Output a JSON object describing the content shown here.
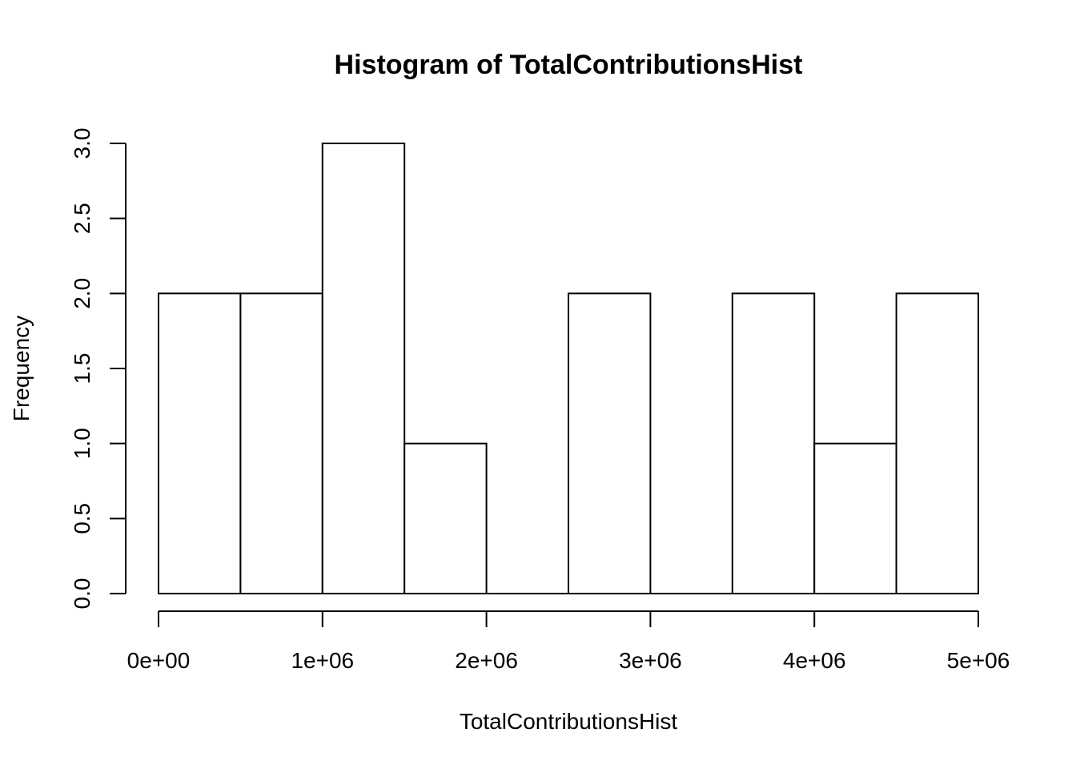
{
  "chart_data": {
    "type": "bar",
    "title": "Histogram of TotalContributionsHist",
    "xlabel": "TotalContributionsHist",
    "ylabel": "Frequency",
    "bins": [
      {
        "start": 0,
        "end": 500000,
        "count": 2
      },
      {
        "start": 500000,
        "end": 1000000,
        "count": 2
      },
      {
        "start": 1000000,
        "end": 1500000,
        "count": 3
      },
      {
        "start": 1500000,
        "end": 2000000,
        "count": 1
      },
      {
        "start": 2000000,
        "end": 2500000,
        "count": 0
      },
      {
        "start": 2500000,
        "end": 3000000,
        "count": 2
      },
      {
        "start": 3000000,
        "end": 3500000,
        "count": 0
      },
      {
        "start": 3500000,
        "end": 4000000,
        "count": 2
      },
      {
        "start": 4000000,
        "end": 4500000,
        "count": 1
      },
      {
        "start": 4500000,
        "end": 5000000,
        "count": 2
      }
    ],
    "xlim": [
      0,
      5000000
    ],
    "ylim": [
      0,
      3
    ],
    "x_ticks": [
      {
        "value": 0,
        "label": "0e+00"
      },
      {
        "value": 1000000,
        "label": "1e+06"
      },
      {
        "value": 2000000,
        "label": "2e+06"
      },
      {
        "value": 3000000,
        "label": "3e+06"
      },
      {
        "value": 4000000,
        "label": "4e+06"
      },
      {
        "value": 5000000,
        "label": "5e+06"
      }
    ],
    "y_ticks": [
      {
        "value": 0,
        "label": "0.0"
      },
      {
        "value": 0.5,
        "label": "0.5"
      },
      {
        "value": 1,
        "label": "1.0"
      },
      {
        "value": 1.5,
        "label": "1.5"
      },
      {
        "value": 2,
        "label": "2.0"
      },
      {
        "value": 2.5,
        "label": "2.5"
      },
      {
        "value": 3,
        "label": "3.0"
      }
    ],
    "grid": false,
    "colors": {
      "bar_fill": "#ffffff",
      "bar_stroke": "#000000"
    }
  }
}
